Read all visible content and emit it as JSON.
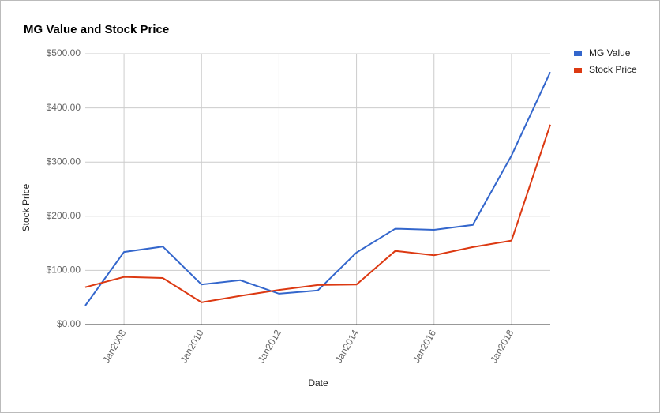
{
  "chart_data": {
    "type": "line",
    "title": "MG Value and Stock Price",
    "x_label": "Date",
    "y_label": "Stock Price",
    "x": [
      2007,
      2008,
      2009,
      2010,
      2011,
      2012,
      2013,
      2014,
      2015,
      2016,
      2017,
      2018,
      2019
    ],
    "series": [
      {
        "name": "MG Value",
        "color": "#3366cc",
        "values": [
          35,
          134,
          144,
          74,
          82,
          57,
          63,
          133,
          177,
          175,
          184,
          312,
          466
        ]
      },
      {
        "name": "Stock Price",
        "color": "#dc3912",
        "values": [
          69,
          88,
          86,
          41,
          53,
          64,
          73,
          74,
          136,
          128,
          143,
          155,
          369
        ]
      }
    ],
    "xlim": [
      2007,
      2019
    ],
    "xticks": [
      {
        "value": 2008,
        "label": "Jan2008"
      },
      {
        "value": 2010,
        "label": "Jan2010"
      },
      {
        "value": 2012,
        "label": "Jan2012"
      },
      {
        "value": 2014,
        "label": "Jan2014"
      },
      {
        "value": 2016,
        "label": "Jan2016"
      },
      {
        "value": 2018,
        "label": "Jan2018"
      }
    ],
    "ylim": [
      0,
      500
    ],
    "yticks": [
      {
        "value": 0,
        "label": "$0.00"
      },
      {
        "value": 100,
        "label": "$100.00"
      },
      {
        "value": 200,
        "label": "$200.00"
      },
      {
        "value": 300,
        "label": "$300.00"
      },
      {
        "value": 400,
        "label": "$400.00"
      },
      {
        "value": 500,
        "label": "$500.00"
      }
    ],
    "grid": true,
    "legend": "right"
  }
}
